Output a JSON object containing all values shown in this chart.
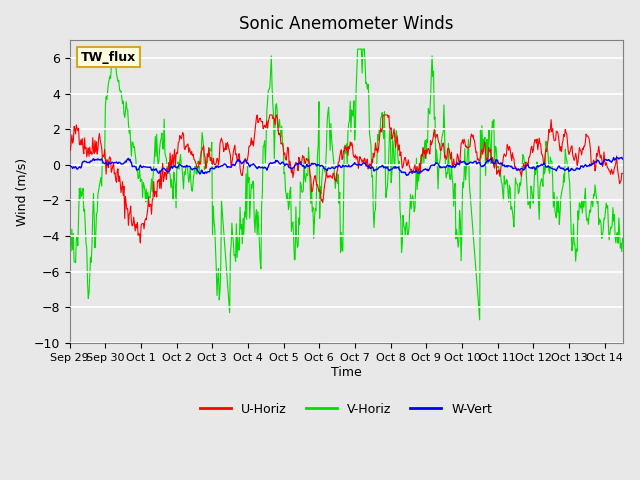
{
  "title": "Sonic Anemometer Winds",
  "xlabel": "Time",
  "ylabel": "Wind (m/s)",
  "ylim": [
    -10,
    7
  ],
  "yticks": [
    -10,
    -8,
    -6,
    -4,
    -2,
    0,
    2,
    4,
    6
  ],
  "xlim_days": [
    0,
    15.5
  ],
  "x_tick_labels": [
    "Sep 29",
    "Sep 30",
    "Oct 1",
    "Oct 2",
    "Oct 3",
    "Oct 4",
    "Oct 5",
    "Oct 6",
    "Oct 7",
    "Oct 8",
    "Oct 9",
    "Oct 10",
    "Oct 11",
    "Oct 12",
    "Oct 13",
    "Oct 14"
  ],
  "x_tick_positions": [
    0,
    1,
    2,
    3,
    4,
    5,
    6,
    7,
    8,
    9,
    10,
    11,
    12,
    13,
    14,
    15
  ],
  "colors": {
    "u_horiz": "#FF0000",
    "v_horiz": "#00DD00",
    "w_vert": "#0000FF",
    "fig_bg": "#E8E8E8",
    "plot_bg": "#E8E8E8",
    "grid": "#FFFFFF"
  },
  "legend_label": "TW_flux",
  "figsize": [
    6.4,
    4.8
  ],
  "dpi": 100
}
